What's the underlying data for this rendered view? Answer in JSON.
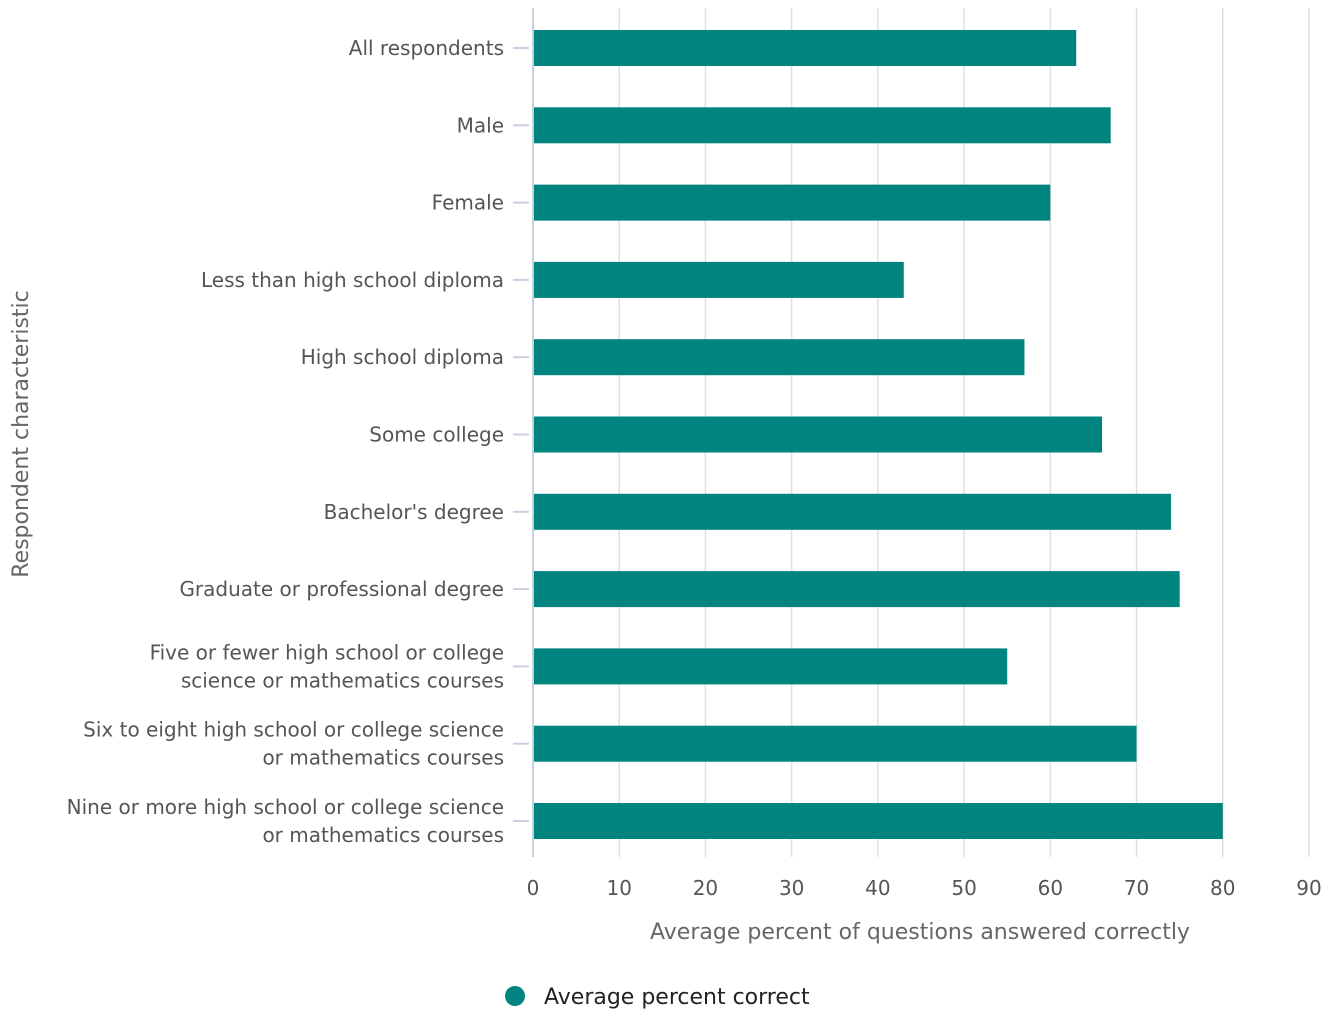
{
  "chart_data": {
    "type": "bar",
    "orientation": "horizontal",
    "categories": [
      [
        "All respondents"
      ],
      [
        "Male"
      ],
      [
        "Female"
      ],
      [
        "Less than high school diploma"
      ],
      [
        "High school diploma"
      ],
      [
        "Some college"
      ],
      [
        "Bachelor's degree"
      ],
      [
        "Graduate or professional degree"
      ],
      [
        "Five or fewer high school or college",
        "science or mathematics courses"
      ],
      [
        "Six to eight high school or college science",
        "or mathematics courses"
      ],
      [
        "Nine or more high school or college science",
        "or mathematics courses"
      ]
    ],
    "series": [
      {
        "name": "Average percent correct",
        "values": [
          63,
          67,
          60,
          43,
          57,
          66,
          74,
          75,
          55,
          70,
          80
        ]
      }
    ],
    "xlabel": "Average percent of questions answered correctly",
    "ylabel": "Respondent characteristic",
    "xlim": [
      0,
      90
    ],
    "xticks": [
      0,
      10,
      20,
      30,
      40,
      50,
      60,
      70,
      80,
      90
    ],
    "grid": true,
    "legend_position": "bottom"
  },
  "colors": {
    "bar": "#00847f",
    "grid": "#e0e0e0",
    "axis": "#c8d0e0"
  }
}
